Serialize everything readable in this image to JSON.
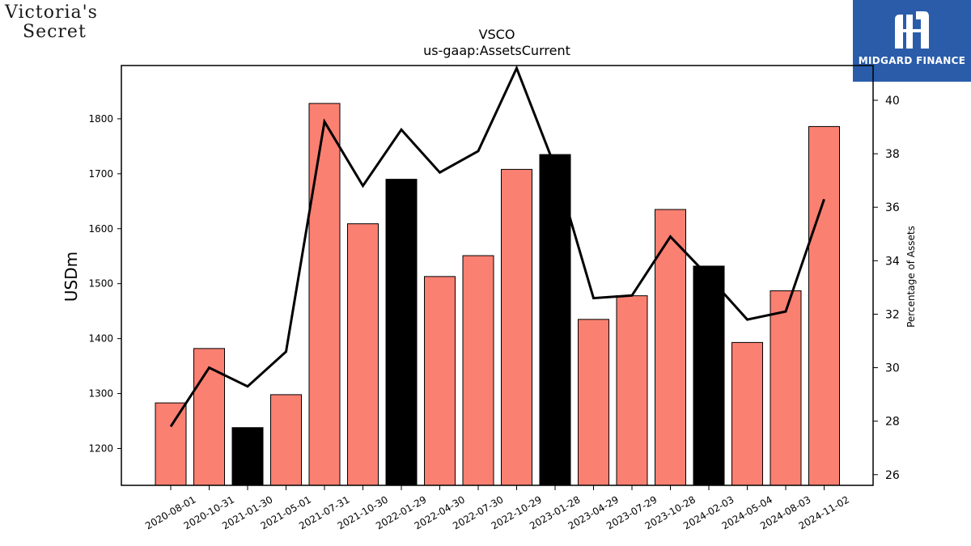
{
  "brand": {
    "line1": "Victoria's",
    "line2": "Secret"
  },
  "partner": {
    "name": "MIDGARD FINANCE",
    "icon": "midgard-logo-icon",
    "background": "#2a5caa"
  },
  "chart_data": {
    "type": "bar",
    "title": "VSCO",
    "subtitle": "us-gaap:AssetsCurrent",
    "ylabel": "USDm",
    "y2label": "Percentage of Assets",
    "ylim": [
      1133,
      1897
    ],
    "y2lim": [
      25.6,
      41.3
    ],
    "yticks": [
      1200,
      1300,
      1400,
      1500,
      1600,
      1700,
      1800
    ],
    "y2ticks": [
      26,
      28,
      30,
      32,
      34,
      36,
      38,
      40
    ],
    "categories": [
      "2020-08-01",
      "2020-10-31",
      "2021-01-30",
      "2021-05-01",
      "2021-07-31",
      "2021-10-30",
      "2022-01-29",
      "2022-04-30",
      "2022-07-30",
      "2022-10-29",
      "2023-01-28",
      "2023-04-29",
      "2023-07-29",
      "2023-10-28",
      "2024-02-03",
      "2024-05-04",
      "2024-08-03",
      "2024-11-02"
    ],
    "series": [
      {
        "kind": "bar",
        "axis": "left",
        "values": [
          1283,
          1382,
          1238,
          1298,
          1828,
          1609,
          1690,
          1513,
          1551,
          1708,
          1735,
          1435,
          1478,
          1635,
          1532,
          1393,
          1487,
          1786
        ],
        "highlight": [
          false,
          false,
          true,
          false,
          false,
          false,
          true,
          false,
          false,
          false,
          true,
          false,
          false,
          false,
          true,
          false,
          false,
          false
        ]
      },
      {
        "kind": "line",
        "axis": "right",
        "values": [
          27.8,
          30.0,
          29.3,
          30.6,
          39.2,
          36.8,
          38.9,
          37.3,
          38.1,
          41.2,
          37.5,
          32.6,
          32.7,
          34.9,
          33.4,
          31.8,
          32.1,
          36.3
        ]
      }
    ],
    "colors": {
      "bar": "#fa8072",
      "bar_highlight": "#000000",
      "line": "#000000"
    },
    "grid": false,
    "legend": "none"
  }
}
